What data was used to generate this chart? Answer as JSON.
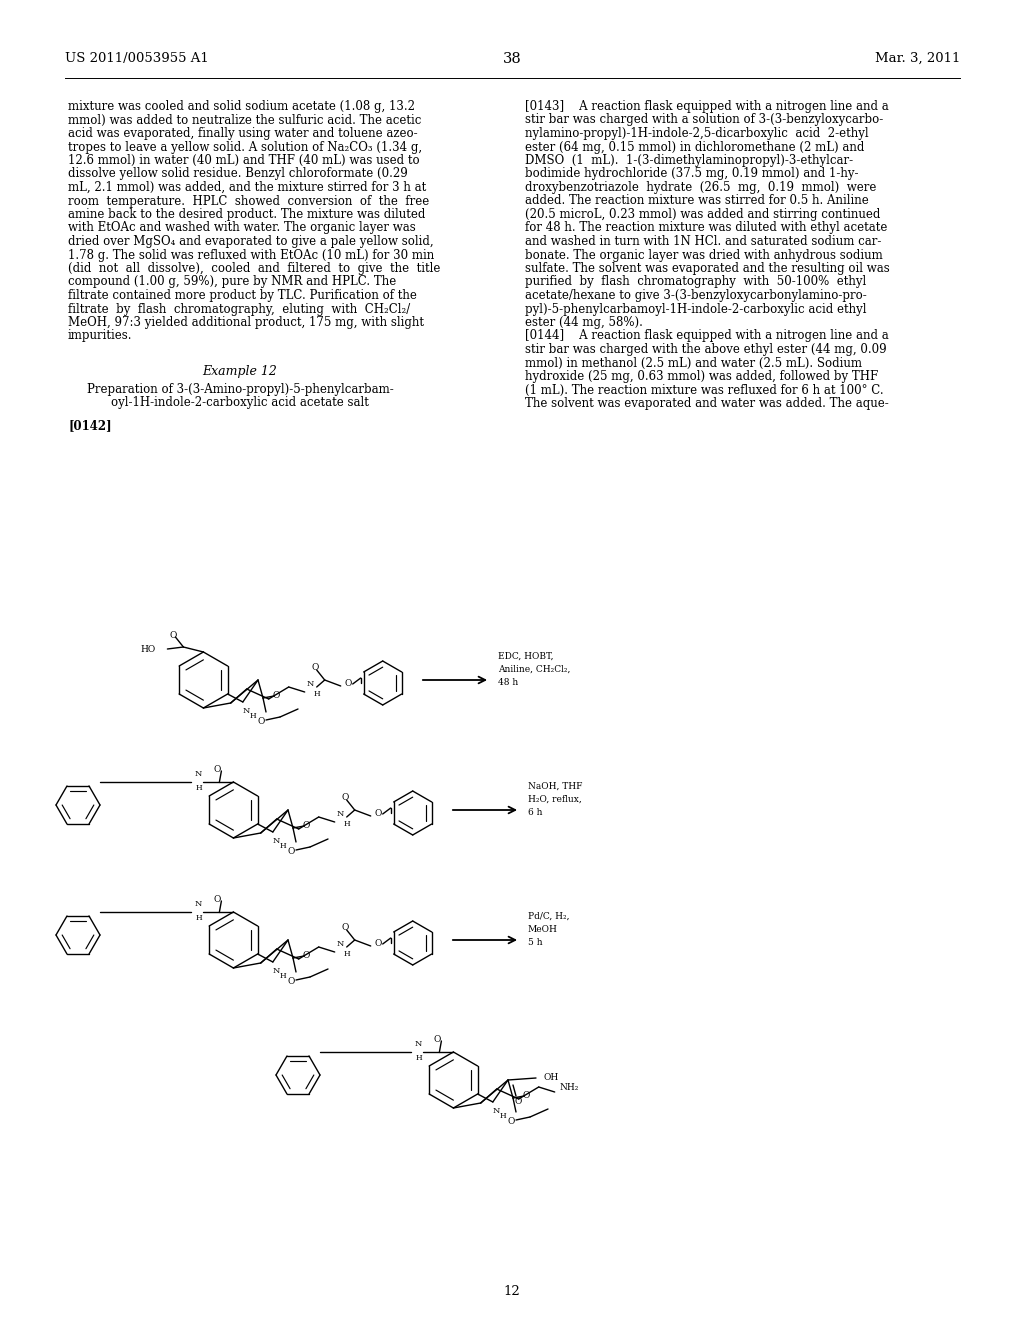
{
  "background_color": "#ffffff",
  "header_left": "US 2011/0053955 A1",
  "header_center": "38",
  "header_right": "Mar. 3, 2011",
  "footer_center": "12",
  "left_col_lines": [
    "mixture was cooled and solid sodium acetate (1.08 g, 13.2",
    "mmol) was added to neutralize the sulfuric acid. The acetic",
    "acid was evaporated, finally using water and toluene azeo-",
    "tropes to leave a yellow solid. A solution of Na₂CO₃ (1.34 g,",
    "12.6 mmol) in water (40 mL) and THF (40 mL) was used to",
    "dissolve yellow solid residue. Benzyl chloroformate (0.29",
    "mL, 2.1 mmol) was added, and the mixture stirred for 3 h at",
    "room  temperature.  HPLC  showed  conversion  of  the  free",
    "amine back to the desired product. The mixture was diluted",
    "with EtOAc and washed with water. The organic layer was",
    "dried over MgSO₄ and evaporated to give a pale yellow solid,",
    "1.78 g. The solid was refluxed with EtOAc (10 mL) for 30 min",
    "(did  not  all  dissolve),  cooled  and  filtered  to  give  the  title",
    "compound (1.00 g, 59%), pure by NMR and HPLC. The",
    "filtrate contained more product by TLC. Purification of the",
    "filtrate  by  flash  chromatography,  eluting  with  CH₂Cl₂/",
    "MeOH, 97:3 yielded additional product, 175 mg, with slight",
    "impurities."
  ],
  "example_heading": "Example 12",
  "preparation_line1": "Preparation of 3-(3-Amino-propyl)-5-phenylcarbam-",
  "preparation_line2": "oyl-1H-indole-2-carboxylic acid acetate salt",
  "para0142": "[0142]",
  "right_col_lines": [
    "[0143]    A reaction flask equipped with a nitrogen line and a",
    "stir bar was charged with a solution of 3-(3-benzyloxycarbo-",
    "nylamino-propyl)-1H-indole-2,5-dicarboxylic  acid  2-ethyl",
    "ester (64 mg, 0.15 mmol) in dichloromethane (2 mL) and",
    "DMSO  (1  mL).  1-(3-dimethylaminopropyl)-3-ethylcar-",
    "bodimide hydrochloride (37.5 mg, 0.19 mmol) and 1-hy-",
    "droxybenzotriazole  hydrate  (26.5  mg,  0.19  mmol)  were",
    "added. The reaction mixture was stirred for 0.5 h. Aniline",
    "(20.5 microL, 0.23 mmol) was added and stirring continued",
    "for 48 h. The reaction mixture was diluted with ethyl acetate",
    "and washed in turn with 1N HCl. and saturated sodium car-",
    "bonate. The organic layer was dried with anhydrous sodium",
    "sulfate. The solvent was evaporated and the resulting oil was",
    "purified  by  flash  chromatography  with  50-100%  ethyl",
    "acetate/hexane to give 3-(3-benzyloxycarbonylamino-pro-",
    "pyl)-5-phenylcarbamoyl-1H-indole-2-carboxylic acid ethyl",
    "ester (44 mg, 58%).",
    "[0144]    A reaction flask equipped with a nitrogen line and a",
    "stir bar was charged with the above ethyl ester (44 mg, 0.09",
    "mmol) in methanol (2.5 mL) and water (2.5 mL). Sodium",
    "hydroxide (25 mg, 0.63 mmol) was added, followed by THF",
    "(1 mL). The reaction mixture was refluxed for 6 h at 100° C.",
    "The solvent was evaporated and water was added. The aque-"
  ],
  "rxn_label1_lines": [
    "EDC, HOBT,",
    "Aniline, CH₂Cl₂,",
    "48 h"
  ],
  "rxn_label2_lines": [
    "NaOH, THF",
    "H₂O, reflux,",
    "6 h"
  ],
  "rxn_label3_lines": [
    "Pd/C, H₂,",
    "MeOH",
    "5 h"
  ]
}
